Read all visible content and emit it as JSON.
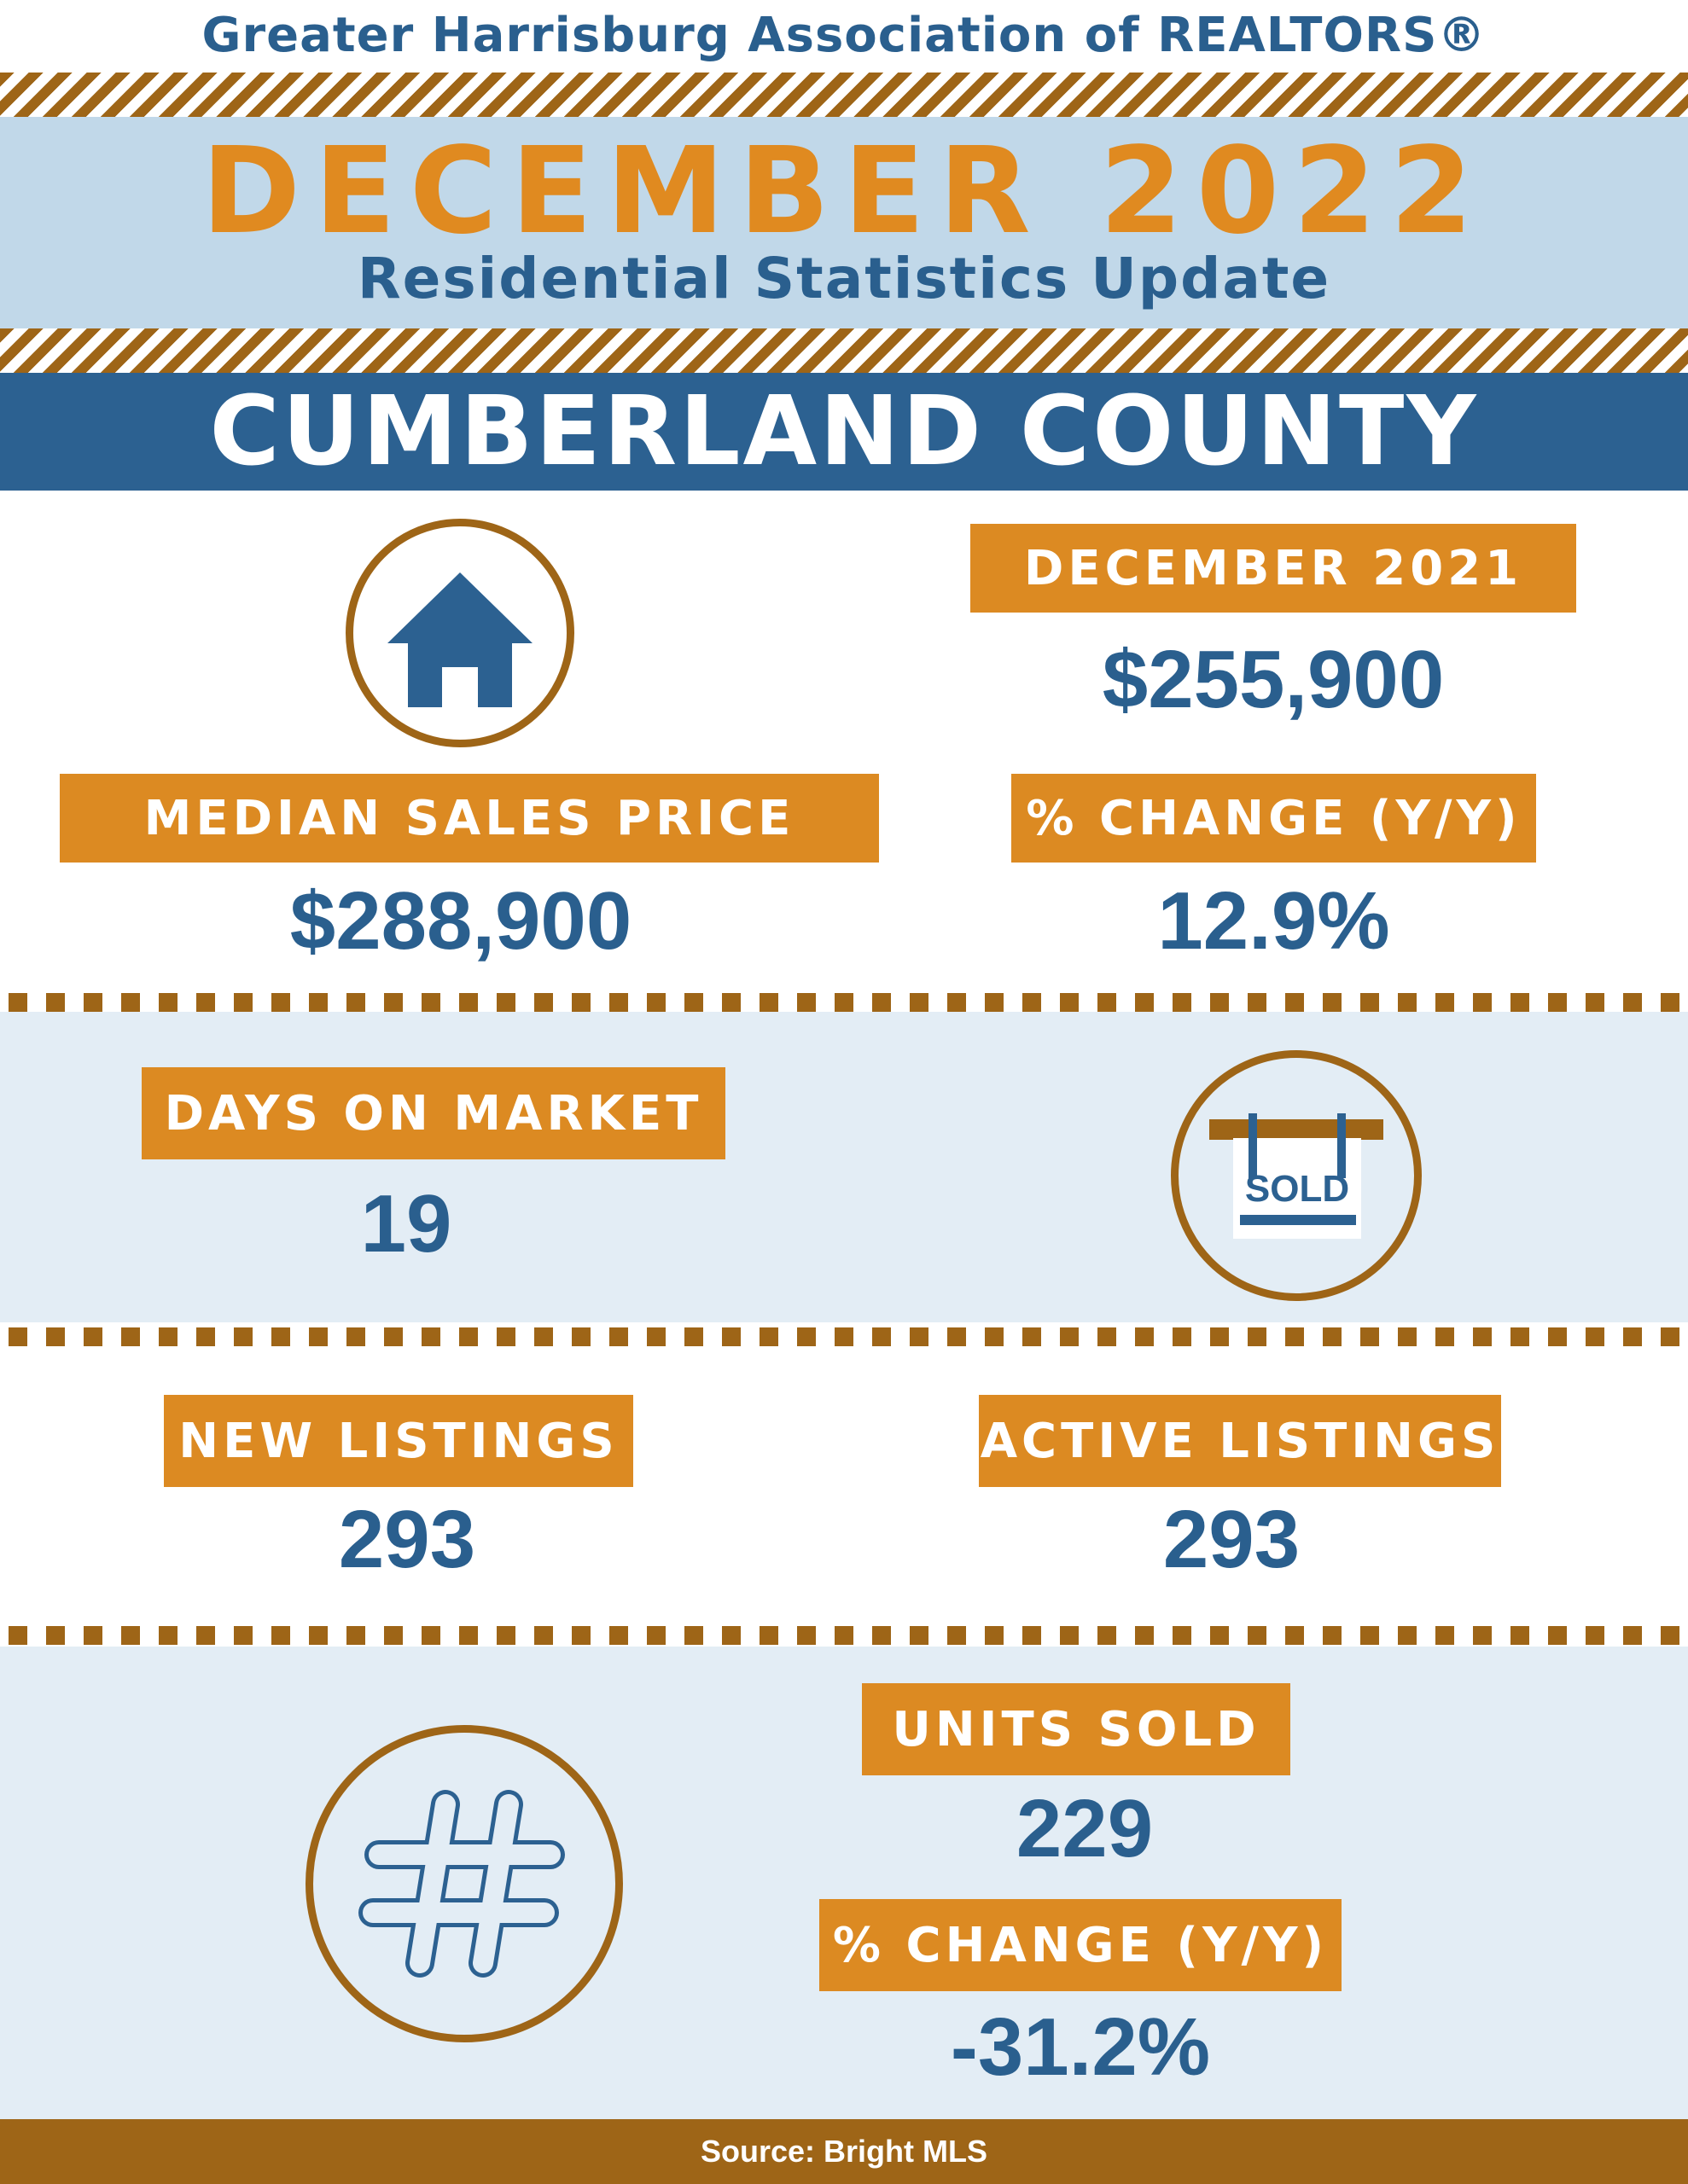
{
  "header": {
    "organization": "Greater Harrisburg Association of REALTORS®",
    "period": "DECEMBER 2022",
    "subtitle": "Residential Statistics Update",
    "county": "CUMBERLAND COUNTY"
  },
  "median_price": {
    "label": "MEDIAN SALES PRICE",
    "value": "$288,900",
    "prior_label": "DECEMBER 2021",
    "prior_value": "$255,900",
    "change_label": "% CHANGE (Y/Y)",
    "change_value": "12.9%"
  },
  "days_on_market": {
    "label": "DAYS ON MARKET",
    "value": "19"
  },
  "sold_sign": {
    "text": "SOLD"
  },
  "listings": {
    "new_label": "NEW LISTINGS",
    "new_value": "293",
    "active_label": "ACTIVE LISTINGS",
    "active_value": "293"
  },
  "units_sold": {
    "label": "UNITS SOLD",
    "value": "229",
    "change_label": "% CHANGE (Y/Y)",
    "change_value": "-31.2%"
  },
  "footer": {
    "source": "Source: Bright MLS"
  },
  "icons": [
    "house-icon",
    "sold-sign-icon",
    "hashtag-icon"
  ],
  "colors": {
    "navy": "#2a5f8e",
    "orange": "#dc8a22",
    "brown": "#9e6517",
    "light_blue": "#c1d8e9",
    "pale_blue": "#e3edf5"
  }
}
